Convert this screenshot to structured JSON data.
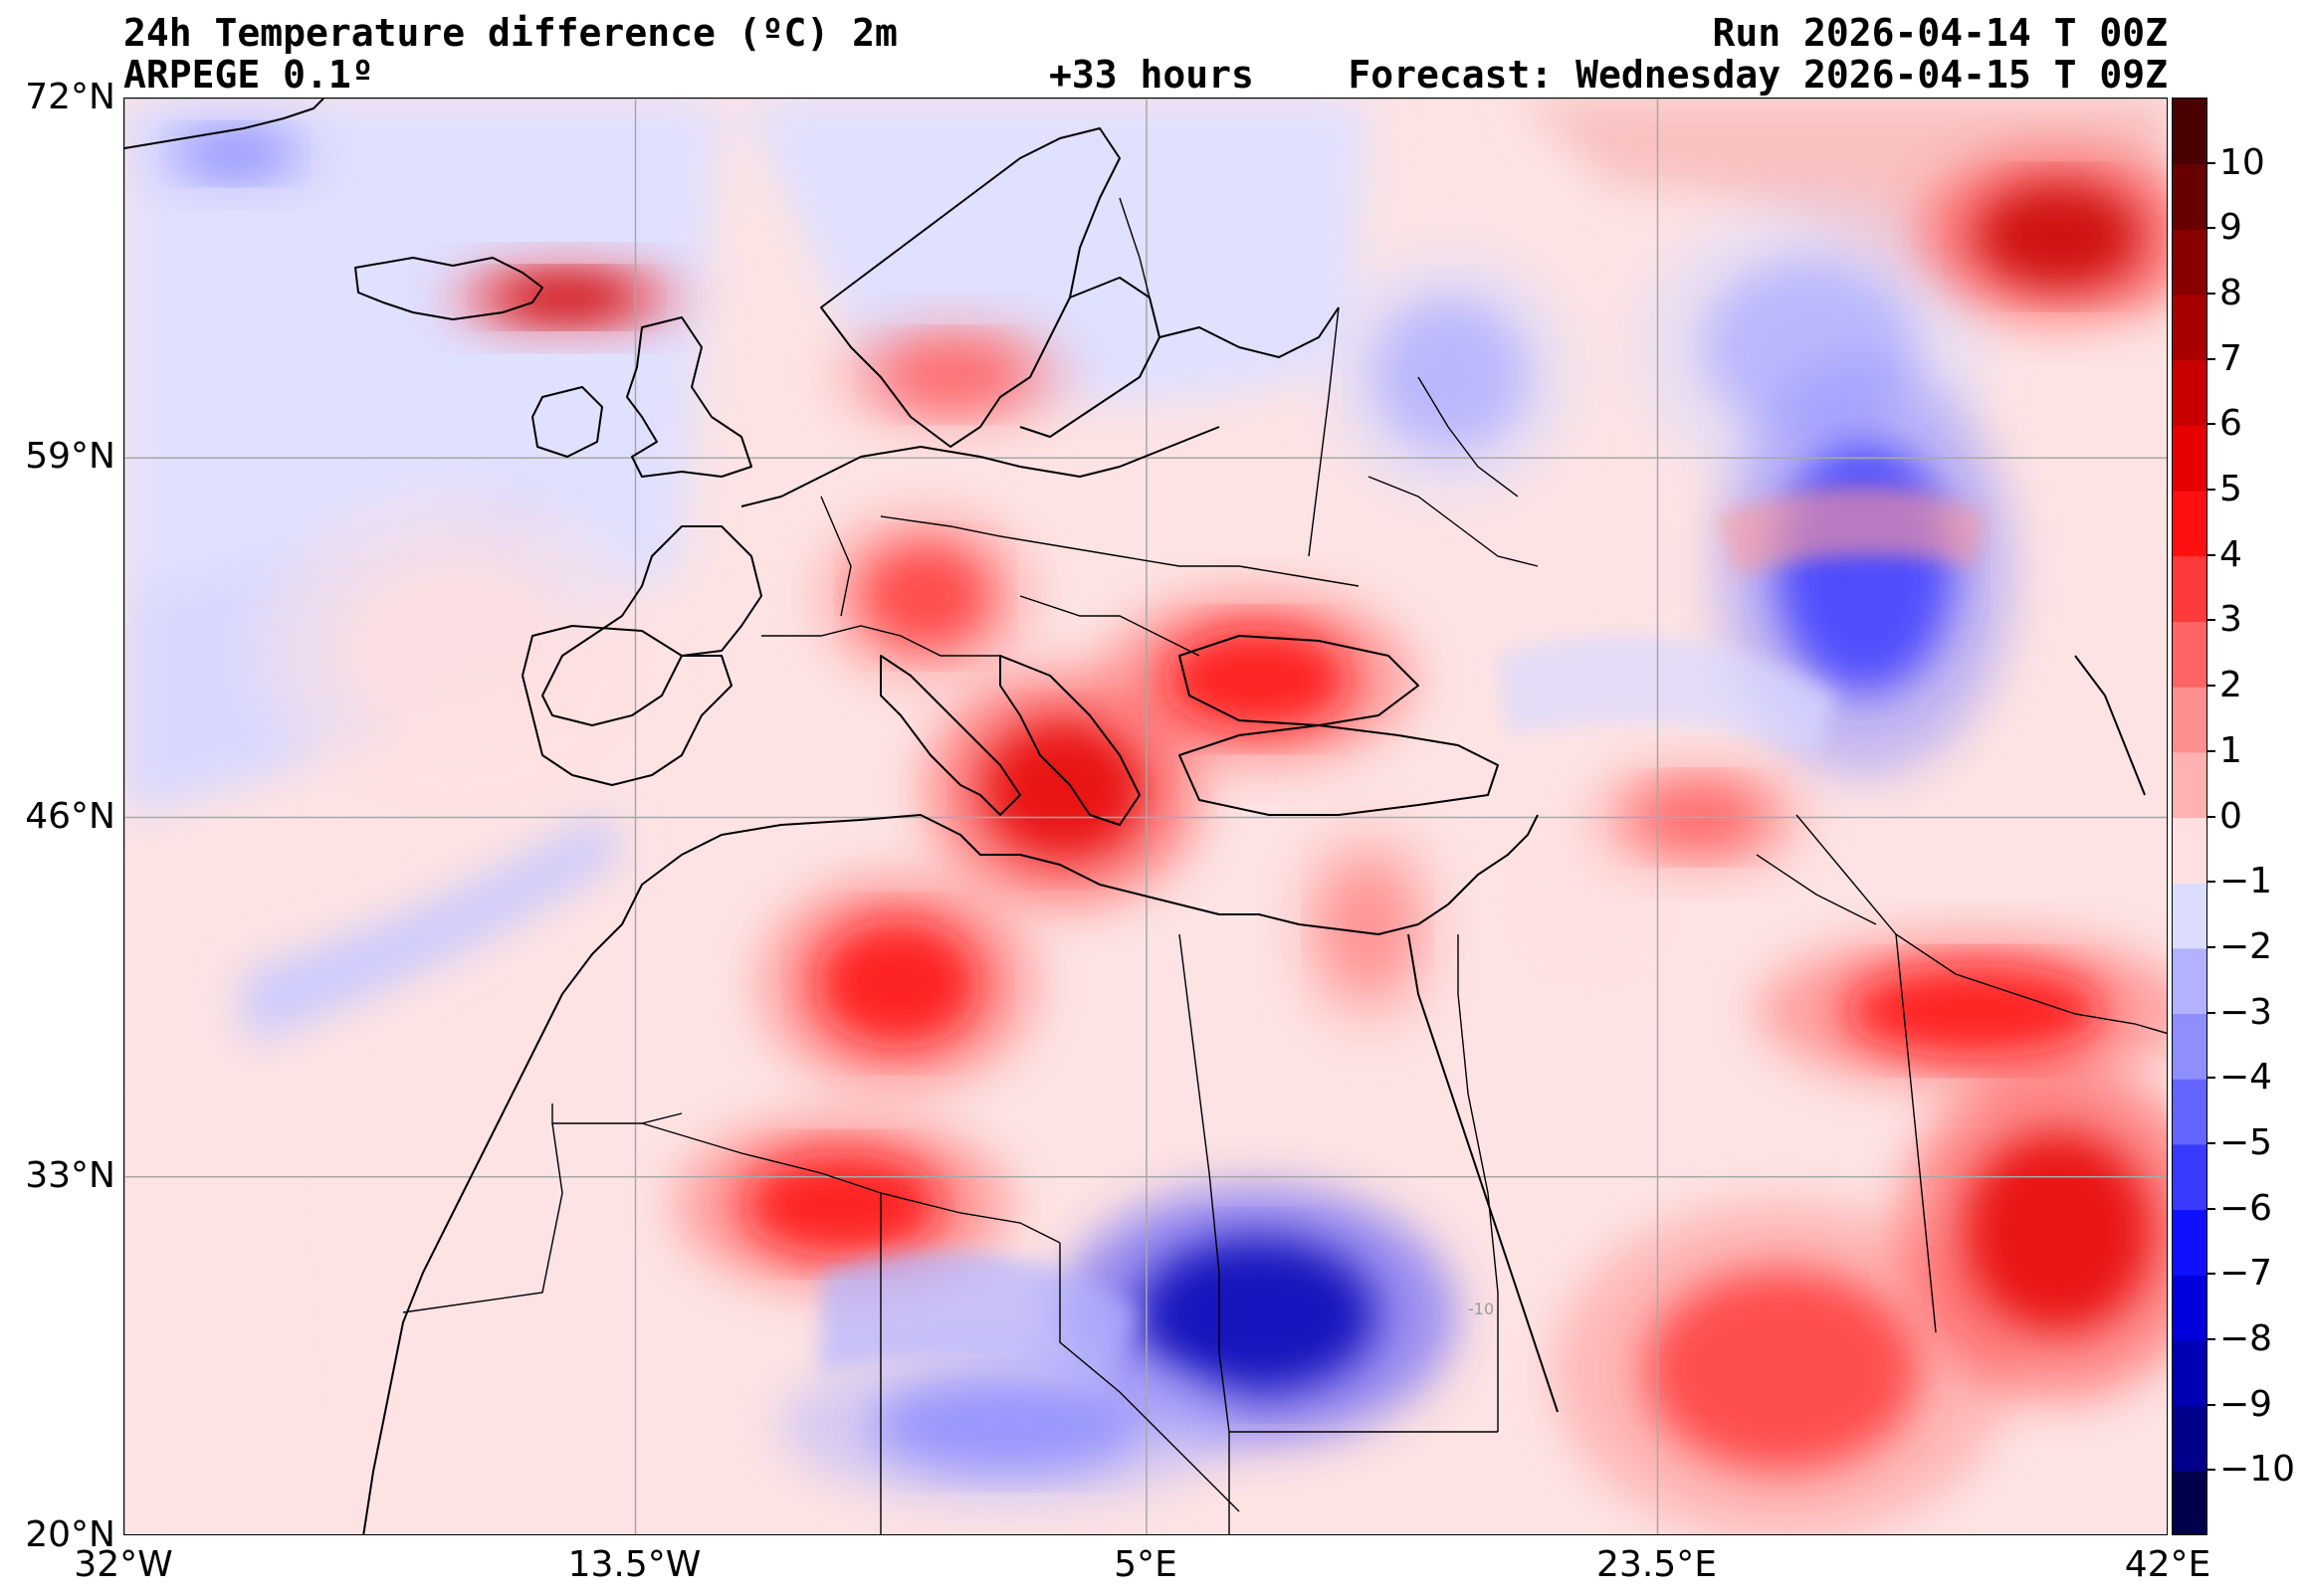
{
  "header": {
    "title_left_line1": "24h Temperature difference (ºC) 2m",
    "title_left_line2": "ARPEGE 0.1º",
    "title_center_line2": "+33 hours",
    "title_right_line1": "Run 2026-04-14 T 00Z",
    "title_right_line2": "Forecast: Wednesday 2026-04-15 T 09Z"
  },
  "map": {
    "projection": "equirectangular",
    "lon_range": [
      -32,
      42
    ],
    "lat_range": [
      20,
      72
    ],
    "lat_ticks": [
      {
        "value": 72,
        "label": "72°N"
      },
      {
        "value": 59,
        "label": "59°N"
      },
      {
        "value": 46,
        "label": "46°N"
      },
      {
        "value": 33,
        "label": "33°N"
      },
      {
        "value": 20,
        "label": "20°N"
      }
    ],
    "lon_ticks": [
      {
        "value": -32,
        "label": "32°W"
      },
      {
        "value": -13.5,
        "label": "13.5°W"
      },
      {
        "value": 5,
        "label": "5°E"
      },
      {
        "value": 23.5,
        "label": "23.5°E"
      },
      {
        "value": 42,
        "label": "42°E"
      }
    ],
    "grid": true,
    "contour_label": "-10",
    "regions": [
      {
        "name": "iceland",
        "lon": -16,
        "lat": 64.8,
        "delta": 6
      },
      {
        "name": "norwegian-sea",
        "lon": -2,
        "lat": 62,
        "delta": 2
      },
      {
        "name": "norway-sweden",
        "lon": 16,
        "lat": 62,
        "delta": -3
      },
      {
        "name": "finland-russia",
        "lon": 29,
        "lat": 63,
        "delta": -3
      },
      {
        "name": "western-russia",
        "lon": 31,
        "lat": 55,
        "delta": -6
      },
      {
        "name": "uk",
        "lon": -3,
        "lat": 54,
        "delta": 3
      },
      {
        "name": "france",
        "lon": 2,
        "lat": 47,
        "delta": 5
      },
      {
        "name": "germany",
        "lon": 9,
        "lat": 51,
        "delta": 4
      },
      {
        "name": "iberia",
        "lon": -4,
        "lat": 40,
        "delta": 4
      },
      {
        "name": "morocco",
        "lon": -6,
        "lat": 32,
        "delta": 4
      },
      {
        "name": "algeria-libya",
        "lon": 9,
        "lat": 28,
        "delta": -9
      },
      {
        "name": "sahara-west",
        "lon": 0,
        "lat": 24,
        "delta": -4
      },
      {
        "name": "egypt",
        "lon": 28,
        "lat": 26,
        "delta": 3
      },
      {
        "name": "turkey",
        "lon": 35,
        "lat": 39,
        "delta": 4
      },
      {
        "name": "middle-east",
        "lon": 38,
        "lat": 31,
        "delta": 5
      },
      {
        "name": "eastern-atlantic",
        "lon": -20,
        "lat": 52,
        "delta": -1
      },
      {
        "name": "italy",
        "lon": 13,
        "lat": 42,
        "delta": 1
      },
      {
        "name": "balkans",
        "lon": 21,
        "lat": 43,
        "delta": -1
      },
      {
        "name": "romania",
        "lon": 25,
        "lat": 46,
        "delta": 2
      },
      {
        "name": "kola",
        "lon": 38,
        "lat": 67,
        "delta": 6
      },
      {
        "name": "svalbard-sea",
        "lon": -28,
        "lat": 70,
        "delta": -4
      }
    ]
  },
  "colorbar": {
    "min": -11,
    "max": 11,
    "labels": [
      "10",
      "9",
      "8",
      "7",
      "6",
      "5",
      "4",
      "3",
      "2",
      "1",
      "0",
      "−1",
      "−2",
      "−3",
      "−4",
      "−5",
      "−6",
      "−7",
      "−8",
      "−9",
      "−10"
    ],
    "colors": [
      "#00004c",
      "#00008a",
      "#0000b4",
      "#0000dc",
      "#1010ff",
      "#3a3aff",
      "#6464ff",
      "#8e8eff",
      "#b2b2ff",
      "#dcdcff",
      "#ffe0e0",
      "#ffb2b2",
      "#ff8e8e",
      "#ff6464",
      "#ff3a3a",
      "#ff1010",
      "#e60000",
      "#c80000",
      "#a80000",
      "#880000",
      "#680000",
      "#4a0000"
    ]
  }
}
